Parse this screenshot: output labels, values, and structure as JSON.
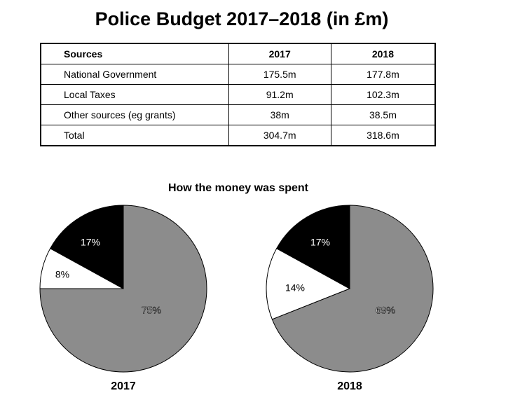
{
  "title": "Police Budget 2017–2018 (in £m)",
  "table": {
    "headers": [
      "Sources",
      "2017",
      "2018"
    ],
    "rows": [
      [
        "National Government",
        "175.5m",
        "177.8m"
      ],
      [
        "Local Taxes",
        "91.2m",
        "102.3m"
      ],
      [
        "Other sources (eg grants)",
        "38m",
        "38.5m"
      ],
      [
        "Total",
        "304.7m",
        "318.6m"
      ]
    ]
  },
  "pies_title": "How the money was spent",
  "colors": {
    "gray": "#8c8c8c",
    "white": "#ffffff",
    "black": "#000000",
    "outline": "#000000"
  },
  "chart_data": [
    {
      "type": "table",
      "title": "Police Budget 2017–2018 (in £m)",
      "columns": [
        "Sources",
        "2017",
        "2018"
      ],
      "rows": [
        [
          "National Government",
          "175.5m",
          "177.8m"
        ],
        [
          "Local Taxes",
          "91.2m",
          "102.3m"
        ],
        [
          "Other sources (eg grants)",
          "38m",
          "38.5m"
        ],
        [
          "Total",
          "304.7m",
          "318.6m"
        ]
      ]
    },
    {
      "type": "pie",
      "title": "How the money was spent",
      "label": "2017",
      "slices": [
        {
          "value": 75,
          "label": "75%",
          "color": "#8c8c8c"
        },
        {
          "value": 8,
          "label": "8%",
          "color": "#ffffff"
        },
        {
          "value": 17,
          "label": "17%",
          "color": "#000000"
        }
      ]
    },
    {
      "type": "pie",
      "title": "How the money was spent",
      "label": "2018",
      "slices": [
        {
          "value": 69,
          "label": "69%",
          "color": "#8c8c8c"
        },
        {
          "value": 14,
          "label": "14%",
          "color": "#ffffff"
        },
        {
          "value": 17,
          "label": "17%",
          "color": "#000000"
        }
      ]
    }
  ]
}
